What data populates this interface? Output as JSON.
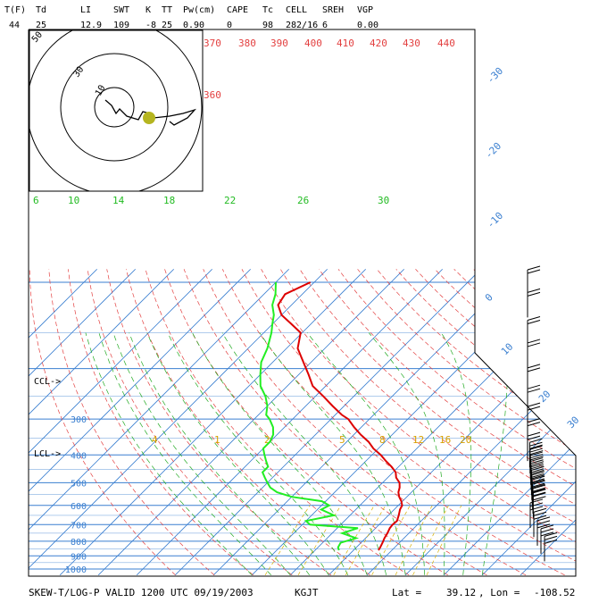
{
  "header": {
    "labels": [
      "T(F)",
      "Td",
      "LI",
      "SWT",
      "K",
      "TT",
      "Pw(cm)",
      "CAPE",
      "Tc",
      "CELL",
      "SREH",
      "VGP"
    ],
    "values": [
      "44",
      "25",
      "12.9",
      "109",
      "-8",
      "25",
      "0.90",
      "0",
      "98",
      "282/16",
      "6",
      "0.00"
    ]
  },
  "footer": {
    "title": "SKEW-T/LOG-P VALID 1200 UTC 09/19/2003",
    "station": "KGJT",
    "lat_label": "Lat =",
    "lat_value": "39.12",
    "lon_label": ", Lon =",
    "lon_value": "-108.52"
  },
  "chart_data": {
    "type": "line",
    "title": "",
    "xlabel": "",
    "ylabel": "",
    "y_scale": "log",
    "pressure_levels": [
      1000,
      900,
      800,
      700,
      600,
      500,
      400,
      300
    ],
    "isotherm_labels": [
      "-30",
      "-20",
      "-10",
      "0",
      "10",
      "20",
      "30"
    ],
    "theta_labels": [
      "370",
      "380",
      "390",
      "400",
      "410",
      "420",
      "430",
      "440",
      "360"
    ],
    "mixing_ratio_labels_upper": [
      "6",
      "10",
      "14",
      "18",
      "22",
      "26",
      "30"
    ],
    "mixing_ratio_labels_lower": [
      "4",
      "1",
      "2",
      "5",
      "8",
      "12",
      "16",
      "20"
    ],
    "level_markers": [
      "CCL->",
      "LCL->"
    ],
    "series": [
      {
        "name": "",
        "color": "#dd0000",
        "pressure": [
          860,
          840,
          810,
          780,
          750,
          720,
          700,
          680,
          650,
          620,
          600,
          580,
          560,
          540,
          520,
          500,
          480,
          460,
          440,
          420,
          400,
          380,
          360,
          340,
          320,
          300,
          290,
          270,
          250,
          230,
          210,
          190,
          170,
          150,
          140,
          130,
          120,
          110,
          100
        ],
        "value": [
          6.5,
          6.2,
          5.6,
          4.9,
          4.4,
          3.7,
          3.5,
          3.7,
          2.7,
          1.5,
          1.0,
          -0.3,
          -2.0,
          -3.4,
          -4.3,
          -5.6,
          -7.8,
          -9.3,
          -11.8,
          -14.8,
          -17.7,
          -21.3,
          -24.3,
          -28.2,
          -31.9,
          -35.5,
          -38.3,
          -43.0,
          -47.9,
          -53.4,
          -57.4,
          -62.0,
          -67.1,
          -70.4,
          -75.0,
          -80.0,
          -83.5,
          -84.5,
          -81.0
        ]
      },
      {
        "name": "",
        "color": "#22ee22",
        "pressure": [
          860,
          840,
          810,
          780,
          750,
          720,
          700,
          680,
          650,
          620,
          600,
          580,
          560,
          540,
          520,
          500,
          480,
          460,
          440,
          420,
          400,
          380,
          360,
          340,
          320,
          300,
          290,
          270,
          250,
          230,
          210,
          190,
          170,
          150,
          140,
          130,
          120,
          110,
          100
        ],
        "value": [
          -3.8,
          -4.8,
          -5.3,
          -2.5,
          -7.4,
          -4.6,
          -18.0,
          -20.0,
          -14.2,
          -19.0,
          -18.0,
          -21.0,
          -30.0,
          -35.0,
          -38.0,
          -40.0,
          -42.0,
          -44.0,
          -44.0,
          -46.0,
          -48.0,
          -50.0,
          -50.0,
          -51.0,
          -53.0,
          -56.0,
          -58.0,
          -60.0,
          -63.0,
          -67.0,
          -70.0,
          -73.0,
          -75.0,
          -78.0,
          -80.0,
          -82.0,
          -85.0,
          -87.0,
          -90.0
        ]
      }
    ],
    "hodograph": {
      "ring_labels": [
        "10",
        "30",
        "50"
      ]
    },
    "wind_barbs": true,
    "grid": true
  }
}
